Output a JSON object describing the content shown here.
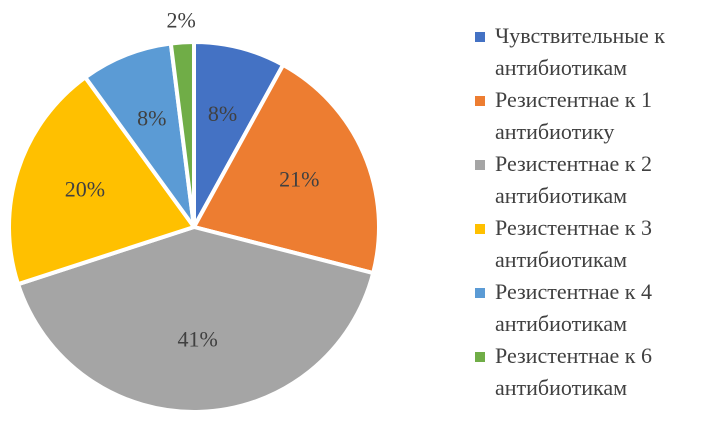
{
  "chart_data": {
    "type": "pie",
    "categories": [
      "Чувствительные к антибиотикам",
      "Резистентнае к 1 антибиотику",
      "Резистентнае к 2 антибиотикам",
      "Резистентнае к 3 антибиотикам",
      "Резистентнае к 4 антибиотикам",
      "Резистентнае к 6 антибиотикам"
    ],
    "values": [
      8,
      21,
      41,
      20,
      8,
      2
    ],
    "value_labels": [
      "8%",
      "21%",
      "41%",
      "20%",
      "8%",
      "2%"
    ],
    "colors": [
      "#4472c4",
      "#ed7d31",
      "#a5a5a5",
      "#ffc000",
      "#5b9bd5",
      "#70ad47"
    ],
    "legend": "right"
  }
}
